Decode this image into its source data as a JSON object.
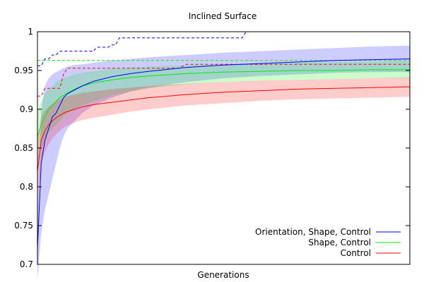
{
  "chart_data": {
    "type": "line",
    "title": "Inclined Surface",
    "xlabel": "Generations",
    "ylabel": "",
    "xlim": [
      0,
      100
    ],
    "ylim": [
      0.7,
      1.0
    ],
    "yticks": [
      0.7,
      0.75,
      0.8,
      0.85,
      0.9,
      0.95,
      1
    ],
    "ytick_labels": [
      "0.7",
      "0.75",
      "0.8",
      "0.85",
      "0.9",
      "0.95",
      "1"
    ],
    "grid": false,
    "legend_position": "bottom-right",
    "series": [
      {
        "name": "Orientation, Shape, Control",
        "color": "#0000ff",
        "x": [
          0,
          1,
          2,
          3,
          4,
          5,
          6,
          7,
          8,
          10,
          12,
          15,
          20,
          25,
          30,
          40,
          50,
          60,
          70,
          80,
          90,
          100
        ],
        "mean": [
          0.72,
          0.83,
          0.86,
          0.875,
          0.89,
          0.895,
          0.905,
          0.915,
          0.92,
          0.925,
          0.93,
          0.936,
          0.942,
          0.946,
          0.949,
          0.954,
          0.957,
          0.959,
          0.961,
          0.963,
          0.964,
          0.965
        ],
        "upper": [
          0.76,
          0.9,
          0.93,
          0.94,
          0.945,
          0.948,
          0.95,
          0.953,
          0.955,
          0.957,
          0.958,
          0.96,
          0.963,
          0.965,
          0.967,
          0.97,
          0.973,
          0.975,
          0.977,
          0.979,
          0.981,
          0.982
        ],
        "lower": [
          0.68,
          0.74,
          0.77,
          0.79,
          0.81,
          0.83,
          0.85,
          0.865,
          0.875,
          0.885,
          0.895,
          0.905,
          0.915,
          0.923,
          0.928,
          0.935,
          0.94,
          0.943,
          0.945,
          0.947,
          0.948,
          0.948
        ],
        "best_x": [
          0,
          1,
          2,
          3,
          4,
          5,
          6,
          7,
          8,
          10,
          12,
          15,
          16,
          19,
          20,
          21,
          22,
          25,
          30,
          40,
          50,
          55,
          56,
          60,
          70,
          80,
          90,
          100
        ],
        "best": [
          0.956,
          0.956,
          0.965,
          0.965,
          0.97,
          0.97,
          0.975,
          0.975,
          0.975,
          0.975,
          0.975,
          0.975,
          0.98,
          0.98,
          0.983,
          0.983,
          0.992,
          0.992,
          0.992,
          0.992,
          0.992,
          0.992,
          1.0,
          1.0,
          1.0,
          1.0,
          1.0,
          1.0
        ]
      },
      {
        "name": "Shape, Control",
        "color": "#00ee00",
        "x": [
          0,
          1,
          2,
          3,
          4,
          5,
          6,
          7,
          8,
          10,
          12,
          15,
          20,
          25,
          30,
          40,
          50,
          60,
          70,
          80,
          90,
          100
        ],
        "mean": [
          0.865,
          0.88,
          0.89,
          0.9,
          0.905,
          0.91,
          0.915,
          0.918,
          0.921,
          0.926,
          0.93,
          0.934,
          0.938,
          0.941,
          0.943,
          0.946,
          0.948,
          0.949,
          0.95,
          0.95,
          0.951,
          0.951
        ],
        "upper": [
          0.9,
          0.91,
          0.92,
          0.925,
          0.93,
          0.935,
          0.938,
          0.94,
          0.942,
          0.945,
          0.947,
          0.949,
          0.952,
          0.954,
          0.955,
          0.957,
          0.958,
          0.959,
          0.96,
          0.961,
          0.961,
          0.962
        ],
        "lower": [
          0.83,
          0.85,
          0.86,
          0.87,
          0.875,
          0.88,
          0.885,
          0.89,
          0.895,
          0.9,
          0.905,
          0.91,
          0.918,
          0.923,
          0.927,
          0.932,
          0.935,
          0.937,
          0.938,
          0.939,
          0.94,
          0.94
        ],
        "best_x": [
          0,
          100
        ],
        "best": [
          0.963,
          0.963
        ]
      },
      {
        "name": "Control",
        "color": "#ff0000",
        "x": [
          0,
          1,
          2,
          3,
          4,
          5,
          6,
          7,
          8,
          10,
          12,
          15,
          20,
          25,
          30,
          40,
          50,
          60,
          70,
          80,
          90,
          100
        ],
        "mean": [
          0.82,
          0.86,
          0.872,
          0.88,
          0.885,
          0.889,
          0.892,
          0.895,
          0.897,
          0.9,
          0.903,
          0.906,
          0.909,
          0.912,
          0.915,
          0.919,
          0.922,
          0.924,
          0.926,
          0.927,
          0.928,
          0.929
        ],
        "upper": [
          0.86,
          0.89,
          0.898,
          0.903,
          0.907,
          0.91,
          0.913,
          0.915,
          0.917,
          0.919,
          0.921,
          0.923,
          0.926,
          0.928,
          0.93,
          0.933,
          0.935,
          0.937,
          0.938,
          0.939,
          0.94,
          0.941
        ],
        "lower": [
          0.78,
          0.83,
          0.845,
          0.855,
          0.862,
          0.868,
          0.872,
          0.876,
          0.879,
          0.883,
          0.886,
          0.889,
          0.893,
          0.897,
          0.9,
          0.905,
          0.908,
          0.911,
          0.913,
          0.914,
          0.915,
          0.916
        ],
        "best_x": [
          0,
          1,
          2,
          6,
          7,
          8,
          10,
          38,
          40,
          60,
          80,
          100
        ],
        "best": [
          0.917,
          0.917,
          0.927,
          0.927,
          0.945,
          0.953,
          0.953,
          0.953,
          0.958,
          0.958,
          0.958,
          0.958
        ]
      }
    ]
  }
}
